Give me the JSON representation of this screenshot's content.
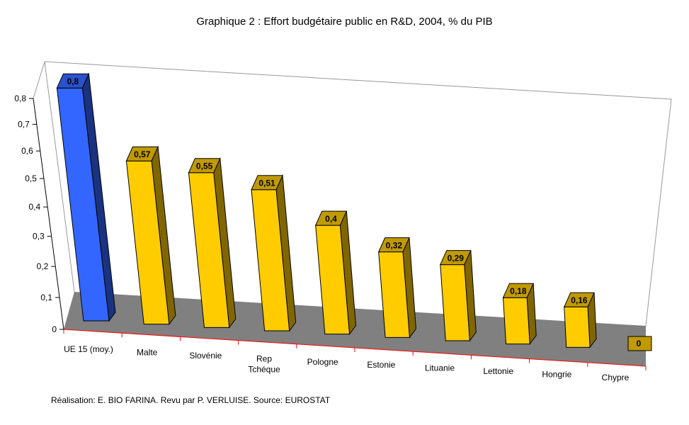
{
  "chart_data": {
    "type": "bar",
    "title": "Graphique 2 : Effort budgétaire public en R&D, 2004, % du PIB",
    "categories": [
      "UE 15 (moy.)",
      "Malte",
      "Slovénie",
      "Rep Tchéque",
      "Pologne",
      "Estonie",
      "Lituanie",
      "Lettonie",
      "Hongrie",
      "Chypre"
    ],
    "category_lines": [
      [
        "UE 15 (moy.)"
      ],
      [
        "Malte"
      ],
      [
        "Slovénie"
      ],
      [
        "Rep",
        "Tchéque"
      ],
      [
        "Pologne"
      ],
      [
        "Estonie"
      ],
      [
        "Lituanie"
      ],
      [
        "Lettonie"
      ],
      [
        "Hongrie"
      ],
      [
        "Chypre"
      ]
    ],
    "values": [
      0.8,
      0.57,
      0.55,
      0.51,
      0.4,
      0.32,
      0.29,
      0.18,
      0.16,
      0
    ],
    "data_labels": [
      "0,8",
      "0,57",
      "0,55",
      "0,51",
      "0,4",
      "0,32",
      "0,29",
      "0,18",
      "0,16",
      "0"
    ],
    "ylim": [
      0,
      0.8
    ],
    "yticks": [
      0,
      0.1,
      0.2,
      0.3,
      0.4,
      0.5,
      0.6,
      0.7,
      0.8
    ],
    "ytick_labels": [
      "0",
      "0,1",
      "0,2",
      "0,3",
      "0,4",
      "0,5",
      "0,6",
      "0,7",
      "0,8"
    ],
    "xlabel": "",
    "ylabel": "",
    "grid": false,
    "style": "3d",
    "colors": {
      "highlight": "#3366FF",
      "highlight_side": "#1A3380",
      "bar": "#FFCC00",
      "bar_side": "#806600",
      "label_box": "#C09A00",
      "floor": "#808080",
      "axis": "#FF0000"
    }
  },
  "footer": {
    "credit": "Réalisation: E. BIO FARINA. Revu par P. VERLUISE. Source: EUROSTAT"
  }
}
